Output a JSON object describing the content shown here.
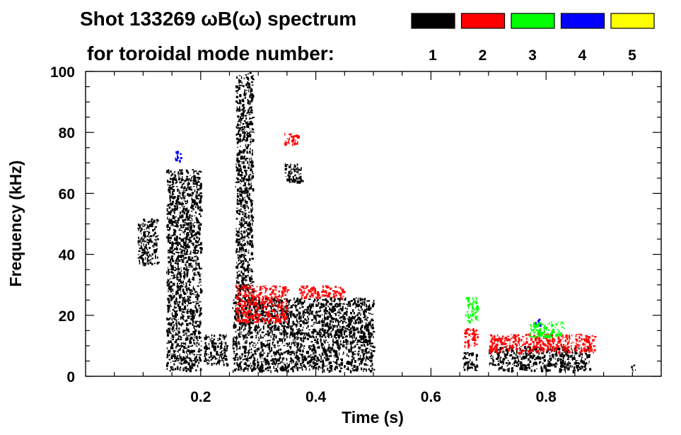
{
  "chart_data": {
    "type": "heatmap",
    "title": "Shot 133269 ωB(ω) spectrum",
    "subtitle": "for toroidal mode number:",
    "xlabel": "Time (s)",
    "ylabel": "Frequency (kHz)",
    "xlim": [
      0.0,
      1.0
    ],
    "ylim": [
      0,
      100
    ],
    "x_ticks": [
      "0.2",
      "0.4",
      "0.6",
      "0.8"
    ],
    "y_ticks": [
      "0",
      "20",
      "40",
      "60",
      "80",
      "100"
    ],
    "grid": false,
    "legend_position": "top-right",
    "legend": [
      {
        "n": "1",
        "color": "#000000"
      },
      {
        "n": "2",
        "color": "#ff0000"
      },
      {
        "n": "3",
        "color": "#00ff00"
      },
      {
        "n": "4",
        "color": "#0000ff"
      },
      {
        "n": "5",
        "color": "#ffff00"
      }
    ],
    "regions": [
      {
        "n": "1",
        "t": [
          0.09,
          0.125
        ],
        "f": [
          37,
          52
        ]
      },
      {
        "n": "1",
        "t": [
          0.14,
          0.2
        ],
        "f": [
          2,
          68
        ]
      },
      {
        "n": "1",
        "t": [
          0.205,
          0.245
        ],
        "f": [
          4,
          14
        ]
      },
      {
        "n": "1",
        "t": [
          0.255,
          0.5
        ],
        "f": [
          2,
          26
        ]
      },
      {
        "n": "1",
        "t": [
          0.26,
          0.29
        ],
        "f": [
          25,
          100
        ]
      },
      {
        "n": "1",
        "t": [
          0.345,
          0.375
        ],
        "f": [
          64,
          70
        ]
      },
      {
        "n": "1",
        "t": [
          0.655,
          0.68
        ],
        "f": [
          2,
          8
        ]
      },
      {
        "n": "1",
        "t": [
          0.7,
          0.875
        ],
        "f": [
          2,
          10
        ]
      },
      {
        "n": "1",
        "t": [
          0.945,
          0.955
        ],
        "f": [
          2,
          4
        ]
      },
      {
        "n": "2",
        "t": [
          0.26,
          0.35
        ],
        "f": [
          18,
          30
        ]
      },
      {
        "n": "2",
        "t": [
          0.345,
          0.37
        ],
        "f": [
          76,
          80
        ]
      },
      {
        "n": "2",
        "t": [
          0.37,
          0.45
        ],
        "f": [
          26,
          30
        ]
      },
      {
        "n": "2",
        "t": [
          0.655,
          0.68
        ],
        "f": [
          10,
          16
        ]
      },
      {
        "n": "2",
        "t": [
          0.7,
          0.885
        ],
        "f": [
          8,
          14
        ]
      },
      {
        "n": "3",
        "t": [
          0.66,
          0.68
        ],
        "f": [
          18,
          26
        ]
      },
      {
        "n": "3",
        "t": [
          0.77,
          0.83
        ],
        "f": [
          13,
          18
        ]
      },
      {
        "n": "4",
        "t": [
          0.155,
          0.165
        ],
        "f": [
          70,
          74
        ]
      },
      {
        "n": "4",
        "t": [
          0.78,
          0.79
        ],
        "f": [
          17,
          19
        ]
      }
    ]
  }
}
